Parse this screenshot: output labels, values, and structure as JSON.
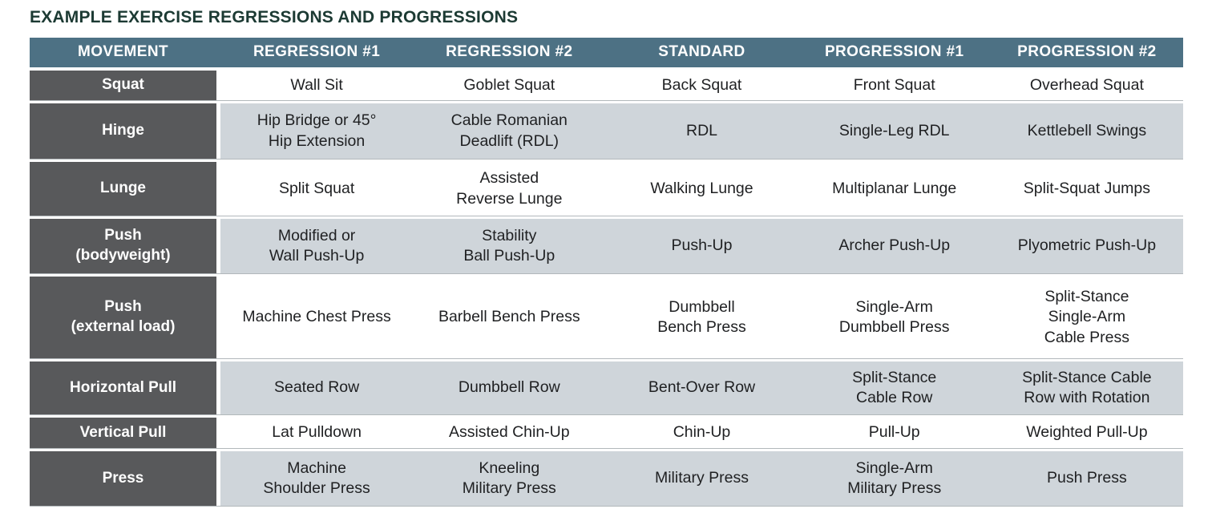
{
  "title": "EXAMPLE EXERCISE REGRESSIONS AND PROGRESSIONS",
  "colors": {
    "title": "#1c3a33",
    "header_bg": "#4d7184",
    "movement_bg": "#58595b",
    "row_alt_bg": "#cfd5da",
    "row_bg": "#ffffff",
    "header_text": "#ffffff",
    "body_text": "#1f2022"
  },
  "chart_data": {
    "type": "table",
    "title": "EXAMPLE EXERCISE REGRESSIONS AND PROGRESSIONS",
    "columns": [
      "MOVEMENT",
      "REGRESSION #1",
      "REGRESSION #2",
      "STANDARD",
      "PROGRESSION #1",
      "PROGRESSION #2"
    ],
    "rows": [
      [
        "Squat",
        "Wall Sit",
        "Goblet Squat",
        "Back Squat",
        "Front Squat",
        "Overhead Squat"
      ],
      [
        "Hinge",
        "Hip Bridge or 45° Hip Extension",
        "Cable Romanian Deadlift (RDL)",
        "RDL",
        "Single-Leg RDL",
        "Kettlebell Swings"
      ],
      [
        "Lunge",
        "Split Squat",
        "Assisted Reverse Lunge",
        "Walking Lunge",
        "Multiplanar Lunge",
        "Split-Squat Jumps"
      ],
      [
        "Push (bodyweight)",
        "Modified or Wall Push-Up",
        "Stability Ball Push-Up",
        "Push-Up",
        "Archer Push-Up",
        "Plyometric Push-Up"
      ],
      [
        "Push (external load)",
        "Machine Chest Press",
        "Barbell Bench Press",
        "Dumbbell Bench Press",
        "Single-Arm Dumbbell Press",
        "Split-Stance Single-Arm Cable Press"
      ],
      [
        "Horizontal Pull",
        "Seated Row",
        "Dumbbell Row",
        "Bent-Over Row",
        "Split-Stance Cable Row",
        "Split-Stance Cable Row with Rotation"
      ],
      [
        "Vertical Pull",
        "Lat Pulldown",
        "Assisted Chin-Up",
        "Chin-Up",
        "Pull-Up",
        "Weighted Pull-Up"
      ],
      [
        "Press",
        "Machine Shoulder Press",
        "Kneeling Military Press",
        "Military Press",
        "Single-Arm Military Press",
        "Push Press"
      ]
    ]
  },
  "table": {
    "columns": [
      "MOVEMENT",
      "REGRESSION #1",
      "REGRESSION #2",
      "STANDARD",
      "PROGRESSION #1",
      "PROGRESSION #2"
    ],
    "rows": [
      {
        "movement": "Squat",
        "cells": [
          "Wall Sit",
          "Goblet Squat",
          "Back Squat",
          "Front Squat",
          "Overhead Squat"
        ]
      },
      {
        "movement": "Hinge",
        "cells": [
          "Hip Bridge or 45°\nHip Extension",
          "Cable Romanian\nDeadlift (RDL)",
          "RDL",
          "Single-Leg RDL",
          "Kettlebell Swings"
        ]
      },
      {
        "movement": "Lunge",
        "cells": [
          "Split Squat",
          "Assisted\nReverse Lunge",
          "Walking Lunge",
          "Multiplanar Lunge",
          "Split-Squat Jumps"
        ]
      },
      {
        "movement": "Push\n(bodyweight)",
        "cells": [
          "Modified or\nWall Push-Up",
          "Stability\nBall Push-Up",
          "Push-Up",
          "Archer Push-Up",
          "Plyometric Push-Up"
        ]
      },
      {
        "movement": "Push\n(external load)",
        "cells": [
          "Machine Chest Press",
          "Barbell Bench Press",
          "Dumbbell\nBench Press",
          "Single-Arm\nDumbbell Press",
          "Split-Stance\nSingle-Arm\nCable Press"
        ]
      },
      {
        "movement": "Horizontal Pull",
        "cells": [
          "Seated Row",
          "Dumbbell Row",
          "Bent-Over Row",
          "Split-Stance\nCable Row",
          "Split-Stance Cable\nRow with Rotation"
        ]
      },
      {
        "movement": "Vertical Pull",
        "cells": [
          "Lat Pulldown",
          "Assisted Chin-Up",
          "Chin-Up",
          "Pull-Up",
          "Weighted Pull-Up"
        ]
      },
      {
        "movement": "Press",
        "cells": [
          "Machine\nShoulder Press",
          "Kneeling\nMilitary Press",
          "Military Press",
          "Single-Arm\nMilitary Press",
          "Push Press"
        ]
      }
    ]
  }
}
